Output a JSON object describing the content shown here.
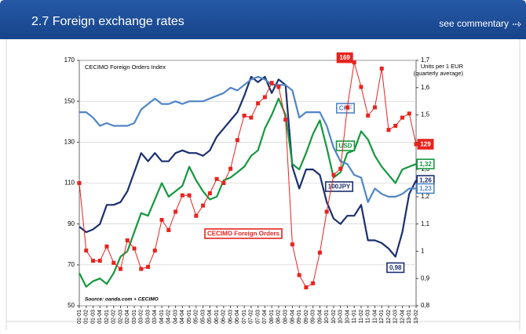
{
  "header": {
    "title": "2.7 Foreign exchange rates",
    "link": "see commentary"
  },
  "chart_data": {
    "type": "line",
    "ylabel": "CECIMO Foreign Orders Index",
    "y2label": [
      "Units per 1 EUR",
      "(quarterly average)"
    ],
    "source": "Source: oanda.com + CECIMO",
    "categories": [
      "01-01",
      "01-02",
      "01-03",
      "01-04",
      "02-01",
      "02-02",
      "02-03",
      "02-04",
      "03-01",
      "03-02",
      "03-03",
      "03-04",
      "04-01",
      "04-02",
      "04-03",
      "04-04",
      "05-01",
      "05-02",
      "05-03",
      "05-04",
      "06-01",
      "06-02",
      "06-03",
      "06-04",
      "07-01",
      "07-02",
      "07-03",
      "07-04",
      "08-01",
      "08-02",
      "08-03",
      "08-04",
      "09-01",
      "09-02",
      "09-03",
      "09-04",
      "10-01",
      "10-02",
      "10-03",
      "10-04",
      "11-01",
      "11-02",
      "11-03",
      "11-04",
      "12-01",
      "12-02",
      "12-03",
      "12-04",
      "13-01",
      "13-02"
    ],
    "ylim": [
      50,
      170
    ],
    "yticks": [
      50,
      70,
      90,
      110,
      130,
      150,
      170
    ],
    "y2lim": [
      0.8,
      1.7
    ],
    "y2ticks": [
      {
        "value": 0.8,
        "label": "0,8"
      },
      {
        "value": 0.9,
        "label": "0,9"
      },
      {
        "value": 1.0,
        "label": "1"
      },
      {
        "value": 1.1,
        "label": "1,1"
      },
      {
        "value": 1.2,
        "label": "1,2"
      },
      {
        "value": 1.3,
        "label": "1,3"
      },
      {
        "value": 1.4,
        "label": "1,4"
      },
      {
        "value": 1.5,
        "label": "1,5"
      },
      {
        "value": 1.6,
        "label": "1,6"
      },
      {
        "value": 1.7,
        "label": "1,7"
      }
    ],
    "grid": true,
    "series": [
      {
        "name": "CECIMO Foreign Orders",
        "color": "#e8231e",
        "markers": true,
        "values": [
          110,
          77,
          72,
          72,
          79,
          71,
          68,
          82,
          78,
          68,
          69,
          77,
          92,
          87,
          96,
          104,
          104,
          94,
          99,
          105,
          112,
          110,
          117,
          131,
          143,
          142,
          149,
          152,
          159,
          157,
          141,
          80,
          65,
          59,
          61,
          76,
          96,
          114,
          117,
          147,
          169,
          157,
          143,
          147,
          166,
          136,
          138,
          142,
          144,
          129
        ],
        "value_labels": [
          null,
          null,
          null,
          null,
          null,
          null,
          null,
          null,
          null,
          null,
          null,
          null,
          null,
          null,
          null,
          null,
          null,
          null,
          null,
          null,
          null,
          null,
          null,
          null,
          null,
          null,
          null,
          null,
          null,
          null,
          null,
          null,
          null,
          null,
          null,
          null,
          null,
          null,
          null,
          null,
          "169",
          null,
          null,
          null,
          null,
          null,
          null,
          null,
          null,
          "129"
        ]
      },
      {
        "name": "CHF",
        "color": "#4f86c6",
        "axis": "y2",
        "values": [
          1.51,
          1.51,
          1.49,
          1.46,
          1.47,
          1.46,
          1.46,
          1.46,
          1.47,
          1.52,
          1.54,
          1.56,
          1.54,
          1.54,
          1.55,
          1.54,
          1.55,
          1.55,
          1.55,
          1.56,
          1.57,
          1.58,
          1.6,
          1.59,
          1.61,
          1.63,
          1.64,
          1.63,
          1.61,
          1.61,
          1.61,
          1.59,
          1.49,
          1.51,
          1.51,
          1.51,
          1.46,
          1.38,
          1.33,
          1.32,
          1.28,
          1.27,
          1.18,
          1.23,
          1.21,
          1.2,
          1.2,
          1.21,
          1.23,
          1.23
        ],
        "value_labels": [
          null,
          null,
          null,
          null,
          null,
          null,
          null,
          null,
          null,
          null,
          null,
          null,
          null,
          null,
          null,
          null,
          null,
          null,
          null,
          null,
          null,
          null,
          null,
          null,
          null,
          null,
          null,
          null,
          null,
          null,
          null,
          null,
          null,
          null,
          null,
          null,
          null,
          null,
          null,
          null,
          null,
          null,
          null,
          null,
          null,
          null,
          null,
          null,
          null,
          "1,23"
        ]
      },
      {
        "name": "USD",
        "color": "#15973e",
        "axis": "y2",
        "values": [
          0.92,
          0.87,
          0.89,
          0.9,
          0.88,
          0.92,
          0.98,
          1.0,
          1.07,
          1.14,
          1.13,
          1.19,
          1.25,
          1.2,
          1.22,
          1.24,
          1.31,
          1.26,
          1.22,
          1.19,
          1.2,
          1.26,
          1.27,
          1.29,
          1.31,
          1.35,
          1.37,
          1.45,
          1.5,
          1.56,
          1.5,
          1.32,
          1.3,
          1.36,
          1.43,
          1.48,
          1.38,
          1.27,
          1.29,
          1.36,
          1.37,
          1.44,
          1.41,
          1.35,
          1.31,
          1.28,
          1.25,
          1.3,
          1.31,
          1.32
        ],
        "value_labels": [
          null,
          null,
          null,
          null,
          null,
          null,
          null,
          null,
          null,
          null,
          null,
          null,
          null,
          null,
          null,
          null,
          null,
          null,
          null,
          null,
          null,
          null,
          null,
          null,
          null,
          null,
          null,
          null,
          null,
          null,
          null,
          null,
          null,
          null,
          null,
          null,
          null,
          null,
          null,
          null,
          null,
          null,
          null,
          null,
          null,
          null,
          null,
          null,
          null,
          "1,32"
        ]
      },
      {
        "name": "100JPY",
        "color": "#1b2f6e",
        "axis": "y2",
        "values": [
          1.09,
          1.07,
          1.08,
          1.1,
          1.17,
          1.17,
          1.18,
          1.22,
          1.29,
          1.36,
          1.33,
          1.36,
          1.33,
          1.33,
          1.36,
          1.37,
          1.36,
          1.36,
          1.35,
          1.37,
          1.42,
          1.45,
          1.48,
          1.51,
          1.57,
          1.64,
          1.62,
          1.64,
          1.58,
          1.63,
          1.61,
          1.31,
          1.23,
          1.3,
          1.3,
          1.28,
          1.18,
          1.12,
          1.1,
          1.13,
          1.13,
          1.17,
          1.04,
          1.04,
          1.03,
          1.01,
          0.98,
          1.07,
          1.21,
          1.26
        ],
        "value_labels": [
          null,
          null,
          null,
          null,
          null,
          null,
          null,
          null,
          null,
          null,
          null,
          null,
          null,
          null,
          null,
          null,
          null,
          null,
          null,
          null,
          null,
          null,
          null,
          null,
          null,
          null,
          null,
          null,
          null,
          null,
          null,
          null,
          null,
          null,
          null,
          null,
          null,
          null,
          null,
          null,
          null,
          null,
          null,
          null,
          null,
          null,
          "0,98",
          null,
          null,
          "1,26"
        ]
      }
    ]
  }
}
